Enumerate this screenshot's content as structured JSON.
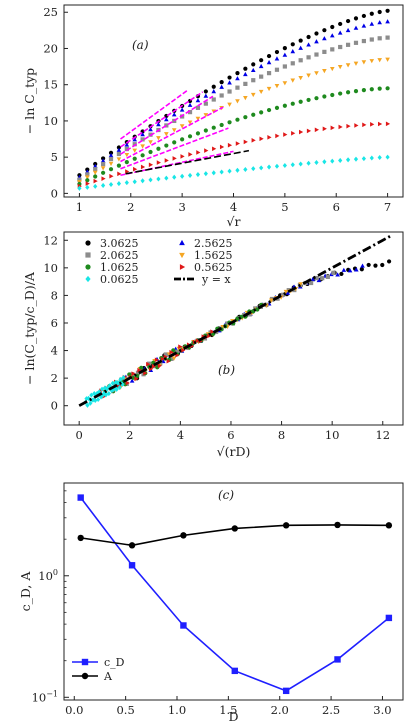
{
  "figure": {
    "panel_a_tag": "(a)",
    "panel_b_tag": "(b)",
    "panel_c_tag": "(c)"
  },
  "chart_data": [
    {
      "type": "scatter",
      "panel": "a",
      "xlabel": "√r",
      "ylabel": "− ln C_typ",
      "xlim": [
        0.7,
        7.3
      ],
      "ylim": [
        -0.5,
        26
      ],
      "xticks": [
        1,
        2,
        3,
        4,
        5,
        6,
        7
      ],
      "yticks": [
        0,
        5,
        10,
        15,
        20,
        25
      ],
      "series": [
        {
          "label": "3.0625",
          "color": "#000000",
          "marker": "circle",
          "x_start": 1.0,
          "x_end": 7.0,
          "count": 40,
          "y_first": 2.5,
          "y_last": 25.2
        },
        {
          "label": "2.5625",
          "color": "#0000e6",
          "marker": "triangle-up",
          "x_start": 1.0,
          "x_end": 7.0,
          "count": 40,
          "y_first": 2.2,
          "y_last": 23.7
        },
        {
          "label": "2.0625",
          "color": "#8c8c8c",
          "marker": "square",
          "x_start": 1.0,
          "x_end": 7.0,
          "count": 40,
          "y_first": 1.9,
          "y_last": 21.5
        },
        {
          "label": "1.5625",
          "color": "#f5a623",
          "marker": "triangle-down",
          "x_start": 1.0,
          "x_end": 7.0,
          "count": 40,
          "y_first": 1.6,
          "y_last": 18.5
        },
        {
          "label": "1.0625",
          "color": "#1e8a1e",
          "marker": "circle",
          "x_start": 1.0,
          "x_end": 7.0,
          "count": 40,
          "y_first": 1.3,
          "y_last": 14.5
        },
        {
          "label": "0.5625",
          "color": "#e01818",
          "marker": "triangle-right",
          "x_start": 1.0,
          "x_end": 7.0,
          "count": 40,
          "y_first": 1.0,
          "y_last": 9.6
        },
        {
          "label": "0.0625",
          "color": "#19e6e6",
          "marker": "diamond",
          "x_start": 1.0,
          "x_end": 7.0,
          "count": 40,
          "y_first": 0.7,
          "y_last": 5.0
        }
      ],
      "fit_lines": [
        {
          "color": "#ff00ff",
          "x": [
            1.8,
            3.1
          ],
          "y": [
            7.5,
            14.2
          ]
        },
        {
          "color": "#ff00ff",
          "x": [
            1.8,
            3.4
          ],
          "y": [
            6.4,
            14.0
          ]
        },
        {
          "color": "#ff00ff",
          "x": [
            1.8,
            3.6
          ],
          "y": [
            5.4,
            13.4
          ]
        },
        {
          "color": "#ff00ff",
          "x": [
            1.8,
            3.8
          ],
          "y": [
            4.4,
            11.9
          ]
        },
        {
          "color": "#ff00ff",
          "x": [
            1.8,
            3.9
          ],
          "y": [
            3.4,
            9.0
          ]
        },
        {
          "color": "#ff00ff",
          "x": [
            1.8,
            4.0
          ],
          "y": [
            2.5,
            5.8
          ]
        },
        {
          "color": "#000000",
          "dash": true,
          "x": [
            1.9,
            4.3
          ],
          "y": [
            2.7,
            5.9
          ]
        }
      ]
    },
    {
      "type": "scatter",
      "panel": "b",
      "xlabel": "√(rD)",
      "ylabel": "− ln(C_typ/c_D)/A",
      "xlim": [
        -0.6,
        12.8
      ],
      "ylim": [
        -1.4,
        12.6
      ],
      "xticks": [
        0,
        2,
        4,
        6,
        8,
        10,
        12
      ],
      "yticks": [
        0,
        2,
        4,
        6,
        8,
        10,
        12
      ],
      "legend": [
        {
          "label": "3.0625",
          "color": "#000000",
          "marker": "circle"
        },
        {
          "label": "2.5625",
          "color": "#0000e6",
          "marker": "triangle-up"
        },
        {
          "label": "2.0625",
          "color": "#8c8c8c",
          "marker": "square"
        },
        {
          "label": "1.5625",
          "color": "#f5a623",
          "marker": "triangle-down"
        },
        {
          "label": "1.0625",
          "color": "#1e8a1e",
          "marker": "circle"
        },
        {
          "label": "0.5625",
          "color": "#e01818",
          "marker": "triangle-right"
        },
        {
          "label": "0.0625",
          "color": "#19e6e6",
          "marker": "diamond"
        },
        {
          "label": "y = x",
          "color": "#000000",
          "marker": "dashdot-line"
        }
      ],
      "reference_line": {
        "x": [
          0,
          12.3
        ],
        "y": [
          0,
          12.3
        ]
      },
      "series": [
        {
          "label": "3.0625",
          "color": "#000000",
          "marker": "circle",
          "x_start": 1.75,
          "x_end": 12.25
        },
        {
          "label": "2.5625",
          "color": "#0000e6",
          "marker": "triangle-up",
          "x_start": 1.6,
          "x_end": 11.2
        },
        {
          "label": "2.0625",
          "color": "#8c8c8c",
          "marker": "square",
          "x_start": 1.44,
          "x_end": 10.05
        },
        {
          "label": "1.5625",
          "color": "#f5a623",
          "marker": "triangle-down",
          "x_start": 1.25,
          "x_end": 8.75
        },
        {
          "label": "1.0625",
          "color": "#1e8a1e",
          "marker": "circle",
          "x_start": 1.03,
          "x_end": 7.2
        },
        {
          "label": "0.5625",
          "color": "#e01818",
          "marker": "triangle-right",
          "x_start": 0.75,
          "x_end": 5.25
        },
        {
          "label": "0.0625",
          "color": "#19e6e6",
          "marker": "diamond",
          "x_start": 0.25,
          "x_end": 1.75
        }
      ]
    },
    {
      "type": "line",
      "panel": "c",
      "xlabel": "D",
      "ylabel": "c_D, A",
      "yscale": "log",
      "xlim": [
        -0.1,
        3.2
      ],
      "ylim": [
        0.095,
        5.8
      ],
      "xticks": [
        0.0,
        0.5,
        1.0,
        1.5,
        2.0,
        2.5,
        3.0
      ],
      "x": [
        0.0625,
        0.5625,
        1.0625,
        1.5625,
        2.0625,
        2.5625,
        3.0625
      ],
      "series": [
        {
          "name": "c_D",
          "color": "#1f1fff",
          "marker": "square",
          "values": [
            4.4,
            1.22,
            0.39,
            0.165,
            0.113,
            0.205,
            0.45
          ]
        },
        {
          "name": "A",
          "color": "#000000",
          "marker": "circle",
          "values": [
            2.05,
            1.78,
            2.15,
            2.45,
            2.6,
            2.62,
            2.6
          ]
        }
      ],
      "legend": [
        {
          "label": "c_D",
          "color": "#1f1fff",
          "marker": "square"
        },
        {
          "label": "A",
          "color": "#000000",
          "marker": "circle"
        }
      ]
    }
  ]
}
